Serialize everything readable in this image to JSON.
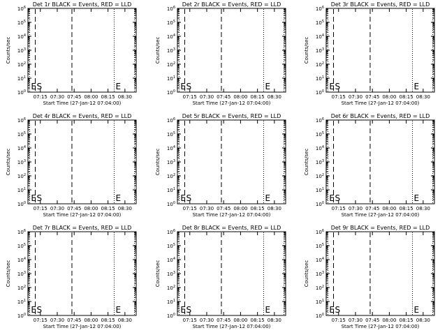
{
  "chart_data": {
    "type": "line",
    "layout": "3x3 grid of panels",
    "xlabel": "Start Time (27-Jan-12 07:04:00)",
    "ylabel": "Counts/sec",
    "x_ticks": [
      "07:15",
      "07:30",
      "07:45",
      "08:00",
      "08:15",
      "08:30"
    ],
    "x_tick_minutes": [
      15,
      30,
      45,
      60,
      75,
      90
    ],
    "xlim_minutes": [
      4,
      100
    ],
    "yscale": "log",
    "ylim": [
      1,
      1000000
    ],
    "y_ticks": [
      {
        "base": "10",
        "exp": "6"
      },
      {
        "base": "10",
        "exp": "5"
      },
      {
        "base": "10",
        "exp": "4"
      },
      {
        "base": "10",
        "exp": "3"
      },
      {
        "base": "10",
        "exp": "2"
      },
      {
        "base": "10",
        "exp": "1"
      },
      {
        "base": "10",
        "exp": "0"
      }
    ],
    "y_tick_values": [
      1000000,
      100000,
      10000,
      1000,
      100,
      10,
      1
    ],
    "grid": false,
    "colors": {
      "events": "#000000",
      "lld": "#ff0000",
      "axes": "#000000"
    },
    "markers": [
      {
        "label": "E",
        "time_min": 5.5,
        "style": "dotted"
      },
      {
        "label": "S",
        "time_min": 10.5,
        "style": "dashed"
      },
      {
        "label": "",
        "time_min": 43,
        "style": "dashed"
      },
      {
        "label": "E",
        "time_min": 80.5,
        "style": "dotted"
      },
      {
        "label": "",
        "time_min": 98.5,
        "style": "dotted"
      }
    ],
    "panels": [
      {
        "title": "Det 1r BLACK = Events, RED = LLD"
      },
      {
        "title": "Det 2r BLACK = Events, RED = LLD"
      },
      {
        "title": "Det 3r BLACK = Events, RED = LLD"
      },
      {
        "title": "Det 4r BLACK = Events, RED = LLD"
      },
      {
        "title": "Det 5r BLACK = Events, RED = LLD"
      },
      {
        "title": "Det 6r BLACK = Events, RED = LLD"
      },
      {
        "title": "Det 7r BLACK = Events, RED = LLD"
      },
      {
        "title": "Det 8r BLACK = Events, RED = LLD"
      },
      {
        "title": "Det 9r BLACK = Events, RED = LLD"
      }
    ]
  }
}
